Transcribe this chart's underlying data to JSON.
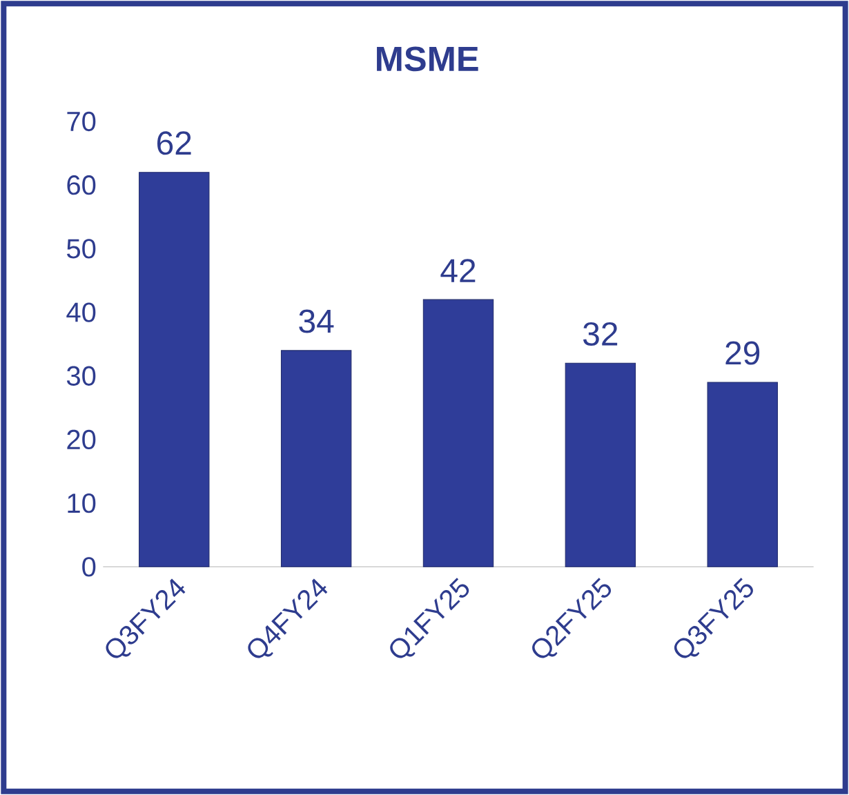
{
  "chart_data": {
    "type": "bar",
    "title": "MSME",
    "categories": [
      "Q3FY24",
      "Q4FY24",
      "Q1FY25",
      "Q2FY25",
      "Q3FY25"
    ],
    "values": [
      62,
      34,
      42,
      32,
      29
    ],
    "color": "#2f3d99",
    "ylim": [
      0,
      70
    ],
    "yticks": [
      0,
      10,
      20,
      30,
      40,
      50,
      60,
      70
    ],
    "data_labels": true
  }
}
